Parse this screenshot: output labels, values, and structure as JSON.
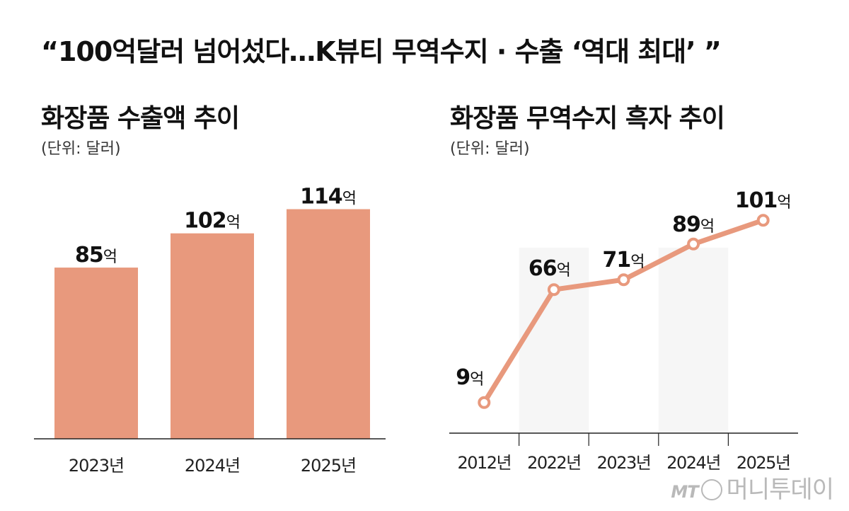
{
  "headline": "“100억달러 넘어섰다…K뷰티 무역수지 · 수출  ‘역대 최대’ ”",
  "watermark": {
    "brand_mark": "MT",
    "brand_name": "머니투데이"
  },
  "colors": {
    "bar": "#e8997d",
    "line": "#e8997d",
    "marker_fill": "#ffffff",
    "axis": "#222222",
    "band": "#efefef"
  },
  "chart_data": [
    {
      "type": "bar",
      "title": "화장품 수출액 추이",
      "unit": "(단위: 달러)",
      "categories": [
        "2023년",
        "2024년",
        "2025년"
      ],
      "values": [
        85,
        102,
        114
      ],
      "value_suffix": "억",
      "ylim": [
        0,
        130
      ],
      "grid": false,
      "legend": "none"
    },
    {
      "type": "line",
      "title": "화장품 무역수지 흑자 추이",
      "unit": "(단위: 달러)",
      "categories": [
        "2012년",
        "2022년",
        "2023년",
        "2024년",
        "2025년"
      ],
      "values": [
        9,
        66,
        71,
        89,
        101
      ],
      "value_suffix": "억",
      "ylim": [
        0,
        115
      ],
      "grid": false,
      "legend": "none"
    }
  ]
}
